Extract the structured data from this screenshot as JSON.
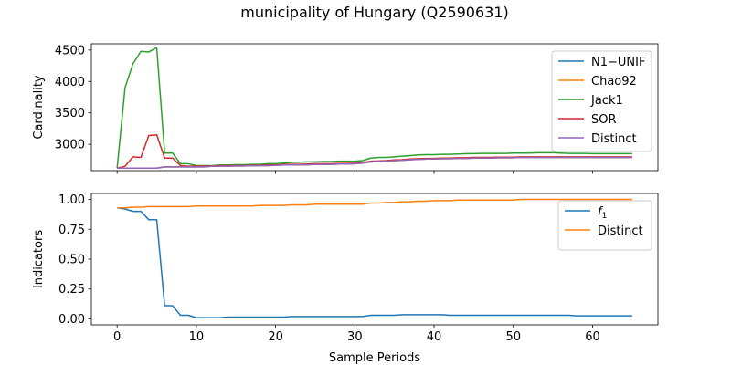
{
  "figure": {
    "title": "municipality of Hungary (Q2590631)"
  },
  "chart_data": [
    {
      "type": "line",
      "ylabel": "Cardinality",
      "xlabel": "",
      "xlim": [
        -3.25,
        68.25
      ],
      "ylim": [
        2580,
        4600
      ],
      "xticks": [
        0,
        10,
        20,
        30,
        40,
        50,
        60
      ],
      "yticks": [
        3000,
        3500,
        4000,
        4500
      ],
      "xtick_labels_visible": false,
      "grid": false,
      "legend_position": "top-right",
      "x": [
        0,
        1,
        2,
        3,
        4,
        5,
        6,
        7,
        8,
        9,
        10,
        11,
        12,
        13,
        14,
        15,
        16,
        17,
        18,
        19,
        20,
        21,
        22,
        23,
        24,
        25,
        26,
        27,
        28,
        29,
        30,
        31,
        32,
        33,
        34,
        35,
        36,
        37,
        38,
        39,
        40,
        41,
        42,
        43,
        44,
        45,
        46,
        47,
        48,
        49,
        50,
        51,
        52,
        53,
        54,
        55,
        56,
        57,
        58,
        59,
        60,
        61,
        62,
        63,
        64,
        65
      ],
      "series": [
        {
          "name": "N1−UNIF",
          "color": "#1f77b4",
          "values": [
            2620,
            2620,
            2620,
            2620,
            2620,
            2620,
            2640,
            2640,
            2640,
            2640,
            2640,
            2640,
            2650,
            2650,
            2650,
            2655,
            2655,
            2660,
            2660,
            2660,
            2665,
            2670,
            2670,
            2670,
            2675,
            2680,
            2680,
            2680,
            2685,
            2685,
            2690,
            2700,
            2720,
            2725,
            2730,
            2740,
            2745,
            2755,
            2760,
            2765,
            2765,
            2770,
            2770,
            2775,
            2775,
            2780,
            2780,
            2780,
            2785,
            2785,
            2785,
            2790,
            2790,
            2790,
            2790,
            2790,
            2790,
            2790,
            2790,
            2790,
            2790,
            2790,
            2790,
            2790,
            2790,
            2790
          ]
        },
        {
          "name": "Chao92",
          "color": "#ff7f0e",
          "values": [
            2620,
            2620,
            2620,
            2620,
            2620,
            2620,
            2640,
            2640,
            2640,
            2640,
            2640,
            2640,
            2650,
            2650,
            2650,
            2655,
            2655,
            2660,
            2660,
            2660,
            2665,
            2670,
            2670,
            2670,
            2675,
            2680,
            2680,
            2680,
            2685,
            2685,
            2690,
            2700,
            2720,
            2725,
            2730,
            2740,
            2745,
            2755,
            2760,
            2765,
            2765,
            2770,
            2770,
            2775,
            2775,
            2780,
            2780,
            2780,
            2785,
            2785,
            2785,
            2790,
            2790,
            2790,
            2790,
            2790,
            2790,
            2790,
            2790,
            2790,
            2790,
            2790,
            2790,
            2790,
            2790,
            2790
          ]
        },
        {
          "name": "Jack1",
          "color": "#2ca02c",
          "values": [
            2620,
            3900,
            4280,
            4480,
            4470,
            4540,
            2860,
            2860,
            2690,
            2690,
            2660,
            2660,
            2660,
            2670,
            2670,
            2675,
            2675,
            2680,
            2680,
            2690,
            2690,
            2700,
            2710,
            2715,
            2720,
            2720,
            2725,
            2725,
            2730,
            2730,
            2730,
            2740,
            2780,
            2790,
            2790,
            2800,
            2810,
            2820,
            2830,
            2835,
            2835,
            2840,
            2840,
            2845,
            2850,
            2850,
            2855,
            2855,
            2855,
            2855,
            2860,
            2860,
            2860,
            2865,
            2865,
            2865,
            2860,
            2855,
            2855,
            2855,
            2850,
            2850,
            2850,
            2850,
            2850,
            2850
          ]
        },
        {
          "name": "SOR",
          "color": "#d62728",
          "values": [
            2620,
            2650,
            2800,
            2790,
            3140,
            3150,
            2780,
            2780,
            2660,
            2650,
            2650,
            2650,
            2655,
            2660,
            2660,
            2660,
            2660,
            2665,
            2665,
            2670,
            2670,
            2680,
            2680,
            2680,
            2685,
            2690,
            2690,
            2690,
            2695,
            2695,
            2700,
            2710,
            2730,
            2735,
            2740,
            2750,
            2755,
            2765,
            2770,
            2775,
            2775,
            2780,
            2780,
            2785,
            2785,
            2790,
            2790,
            2790,
            2795,
            2795,
            2795,
            2800,
            2800,
            2800,
            2800,
            2800,
            2800,
            2800,
            2800,
            2800,
            2800,
            2800,
            2800,
            2800,
            2800,
            2800
          ]
        },
        {
          "name": "Distinct",
          "color": "#9467bd",
          "values": [
            2620,
            2620,
            2620,
            2620,
            2620,
            2620,
            2640,
            2640,
            2640,
            2640,
            2640,
            2640,
            2650,
            2650,
            2650,
            2655,
            2655,
            2660,
            2660,
            2660,
            2665,
            2670,
            2670,
            2670,
            2675,
            2680,
            2680,
            2680,
            2685,
            2685,
            2690,
            2700,
            2720,
            2725,
            2730,
            2740,
            2745,
            2755,
            2760,
            2765,
            2765,
            2770,
            2770,
            2775,
            2775,
            2780,
            2780,
            2780,
            2785,
            2785,
            2785,
            2790,
            2790,
            2790,
            2790,
            2790,
            2790,
            2790,
            2790,
            2790,
            2790,
            2790,
            2790,
            2790,
            2790,
            2790
          ]
        }
      ]
    },
    {
      "type": "line",
      "ylabel": "Indicators",
      "xlabel": "Sample Periods",
      "xlim": [
        -3.25,
        68.25
      ],
      "ylim": [
        -0.05,
        1.05
      ],
      "xticks": [
        0,
        10,
        20,
        30,
        40,
        50,
        60
      ],
      "yticks": [
        0.0,
        0.25,
        0.5,
        0.75,
        1.0
      ],
      "ytick_labels": [
        "0.00",
        "0.25",
        "0.50",
        "0.75",
        "1.00"
      ],
      "grid": false,
      "legend_position": "top-right",
      "x": [
        0,
        1,
        2,
        3,
        4,
        5,
        6,
        7,
        8,
        9,
        10,
        11,
        12,
        13,
        14,
        15,
        16,
        17,
        18,
        19,
        20,
        21,
        22,
        23,
        24,
        25,
        26,
        27,
        28,
        29,
        30,
        31,
        32,
        33,
        34,
        35,
        36,
        37,
        38,
        39,
        40,
        41,
        42,
        43,
        44,
        45,
        46,
        47,
        48,
        49,
        50,
        51,
        52,
        53,
        54,
        55,
        56,
        57,
        58,
        59,
        60,
        61,
        62,
        63,
        64,
        65
      ],
      "series": [
        {
          "name": "f",
          "name_subscript": "1",
          "color": "#1f77b4",
          "values": [
            0.93,
            0.92,
            0.9,
            0.9,
            0.83,
            0.83,
            0.11,
            0.11,
            0.03,
            0.03,
            0.01,
            0.01,
            0.01,
            0.01,
            0.015,
            0.015,
            0.015,
            0.015,
            0.015,
            0.015,
            0.015,
            0.015,
            0.02,
            0.02,
            0.02,
            0.02,
            0.02,
            0.02,
            0.02,
            0.02,
            0.02,
            0.02,
            0.03,
            0.03,
            0.03,
            0.03,
            0.035,
            0.035,
            0.035,
            0.035,
            0.035,
            0.035,
            0.03,
            0.03,
            0.03,
            0.03,
            0.03,
            0.03,
            0.03,
            0.03,
            0.03,
            0.03,
            0.03,
            0.03,
            0.03,
            0.03,
            0.03,
            0.03,
            0.025,
            0.025,
            0.025,
            0.025,
            0.025,
            0.025,
            0.025,
            0.025
          ]
        },
        {
          "name": "Distinct",
          "color": "#ff7f0e",
          "values": [
            0.93,
            0.93,
            0.935,
            0.935,
            0.94,
            0.94,
            0.94,
            0.94,
            0.94,
            0.94,
            0.945,
            0.945,
            0.945,
            0.945,
            0.945,
            0.945,
            0.945,
            0.945,
            0.95,
            0.95,
            0.95,
            0.95,
            0.955,
            0.955,
            0.955,
            0.96,
            0.96,
            0.96,
            0.96,
            0.96,
            0.96,
            0.96,
            0.97,
            0.97,
            0.975,
            0.975,
            0.98,
            0.98,
            0.985,
            0.985,
            0.99,
            0.99,
            0.99,
            0.995,
            0.995,
            0.995,
            0.995,
            0.995,
            0.995,
            0.995,
            0.995,
            1.0,
            1.0,
            1.0,
            1.0,
            1.0,
            1.0,
            1.0,
            1.0,
            1.0,
            1.0,
            1.0,
            1.0,
            1.0,
            1.0,
            1.0
          ]
        }
      ]
    }
  ]
}
